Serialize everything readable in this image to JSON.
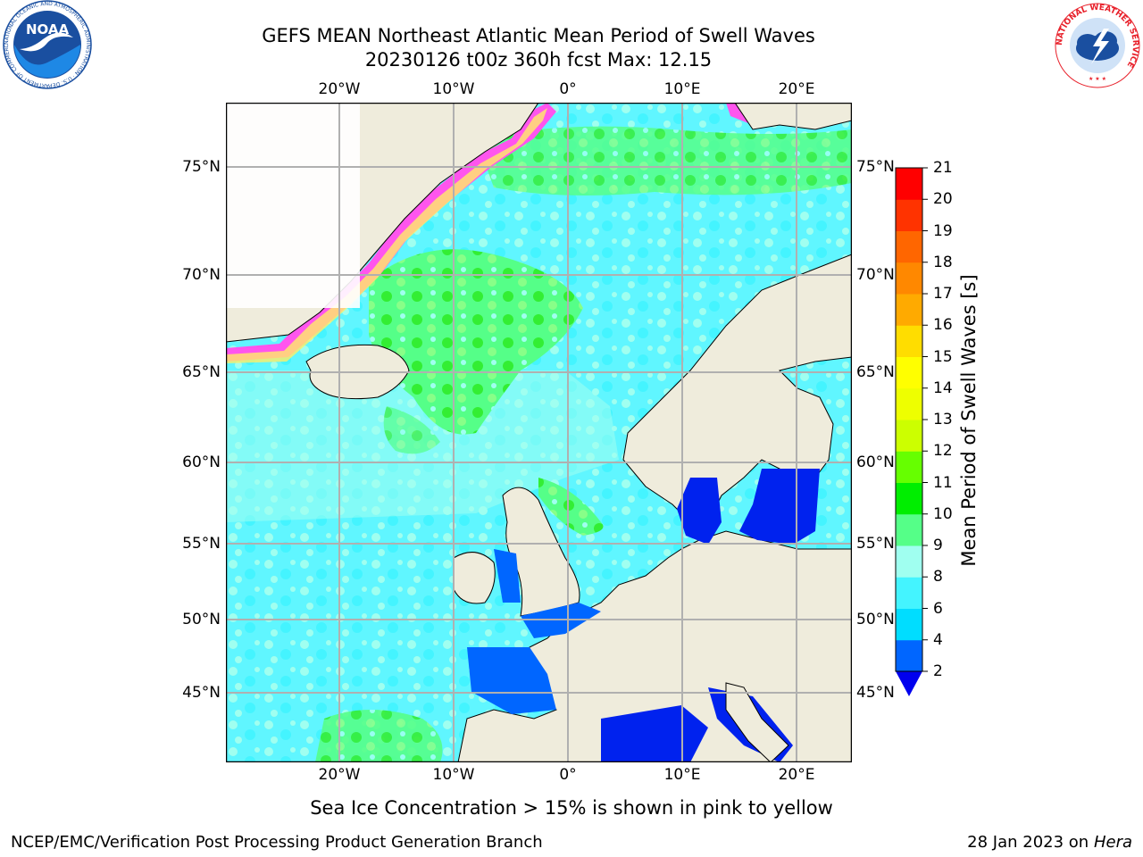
{
  "header": {
    "title_line1": "GEFS MEAN Northeast Atlantic Mean Period of Swell Waves",
    "title_line2": "20230126 t00z 360h fcst   Max: 12.15"
  },
  "logos": {
    "noaa_text": "NOAA",
    "noaa_ring_text": "NATIONAL OCEANIC AND ATMOSPHERIC ADMINISTRATION · U.S. DEPARTMENT OF COMMERCE",
    "nws_ring_text": "NATIONAL WEATHER SERVICE"
  },
  "map": {
    "lon_ticks": [
      "20°W",
      "10°W",
      "0°",
      "10°E",
      "20°E"
    ],
    "lat_ticks": [
      "75°N",
      "70°N",
      "65°N",
      "60°N",
      "55°N",
      "50°N",
      "45°N"
    ],
    "caption": "Sea Ice Concentration > 15% is shown in pink to yellow"
  },
  "colorbar": {
    "label": "Mean Period of Swell Waves [s]",
    "ticks": [
      "2",
      "4",
      "6",
      "8",
      "9",
      "10",
      "11",
      "12",
      "13",
      "14",
      "15",
      "16",
      "17",
      "18",
      "19",
      "20",
      "21"
    ],
    "colors": [
      "#0066ff",
      "#00ddff",
      "#44f4ff",
      "#a0fff0",
      "#55ff88",
      "#00ee00",
      "#66ff00",
      "#ccff00",
      "#eeff00",
      "#ffff00",
      "#ffdd00",
      "#ffaa00",
      "#ff8800",
      "#ff6600",
      "#ff3300",
      "#ff0000"
    ],
    "under_color": "#0000ee"
  },
  "footer": {
    "left": "NCEP/EMC/Verification Post Processing Product Generation Branch",
    "right_date": "28 Jan 2023 on",
    "right_host": "Hera"
  },
  "colors": {
    "land": "#efecdc",
    "ocean_base": "#60f6ff",
    "grid": "#b0b0b0",
    "ice_pink": "#ff55ee",
    "ice_yellow": "#ffee66",
    "noaa_blue": "#1a4fa0",
    "nws_red": "#e8202a"
  }
}
